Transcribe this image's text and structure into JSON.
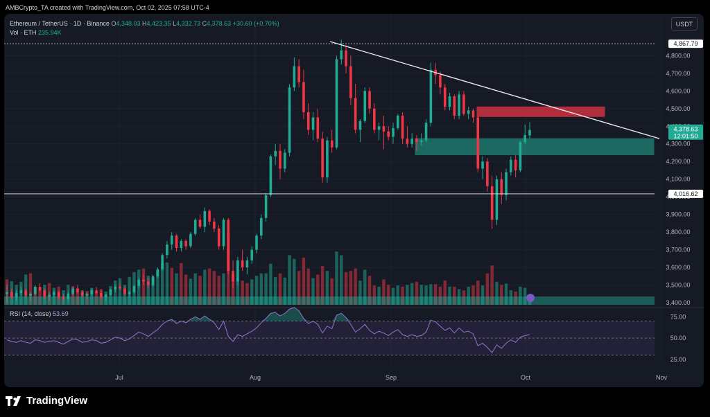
{
  "credit": "AMBCrypto_TA created with TradingView.com, Oct 02, 2025 07:58 UTC-4",
  "header": {
    "symbol": "Ethereum / TetherUS · 1D · Binance",
    "o_label": "O",
    "o": "4,348.03",
    "h_label": "H",
    "h": "4,423.35",
    "l_label": "L",
    "l": "4,332.73",
    "c_label": "C",
    "c": "4,378.63",
    "change": "+30.60 (+0.70%)",
    "vol_label": "Vol · ETH",
    "vol": "235.94K"
  },
  "currency": "USDT",
  "brand": "TradingView",
  "colors": {
    "up": "#22ab94",
    "down": "#f23645",
    "bg": "#161a25",
    "grid": "#1e222d",
    "rsi": "#7e57c2"
  },
  "chart_data": [
    {
      "type": "candlestick",
      "price_ticks": [
        "4,800.00",
        "4,700.00",
        "4,600.00",
        "4,500.00",
        "4,400.00",
        "4,300.00",
        "4,200.00",
        "4,100.00",
        "4,000.00",
        "3,900.00",
        "3,800.00",
        "3,700.00",
        "3,600.00",
        "3,500.00",
        "3,400.00"
      ],
      "ylim": [
        3400,
        4900
      ],
      "x_ticks": [
        "Jul",
        "Aug",
        "Sep",
        "Oct",
        "Nov"
      ],
      "price_labels": {
        "high_line": "4,867.79",
        "last": "4,378.63",
        "countdown": "12:01:50",
        "support": "4,016.62"
      },
      "trendline": {
        "from": [
          4880
        ],
        "to": [
          4330
        ]
      },
      "zones": [
        {
          "name": "resistance",
          "low": 4455,
          "high": 4510,
          "color": "#f23645"
        },
        {
          "name": "support",
          "low": 4238,
          "high": 4330,
          "color": "#22ab94"
        }
      ],
      "ohlc": [
        [
          3450,
          3500,
          3400,
          3460
        ],
        [
          3460,
          3480,
          3420,
          3430
        ],
        [
          3430,
          3470,
          3410,
          3455
        ],
        [
          3455,
          3490,
          3440,
          3470
        ],
        [
          3470,
          3480,
          3430,
          3440
        ],
        [
          3440,
          3460,
          3410,
          3450
        ],
        [
          3450,
          3500,
          3440,
          3490
        ],
        [
          3490,
          3510,
          3460,
          3470
        ],
        [
          3470,
          3480,
          3420,
          3435
        ],
        [
          3435,
          3460,
          3410,
          3445
        ],
        [
          3445,
          3470,
          3430,
          3460
        ],
        [
          3460,
          3470,
          3420,
          3430
        ],
        [
          3430,
          3450,
          3400,
          3420
        ],
        [
          3420,
          3460,
          3410,
          3450
        ],
        [
          3450,
          3490,
          3440,
          3480
        ],
        [
          3480,
          3500,
          3450,
          3460
        ],
        [
          3460,
          3470,
          3430,
          3440
        ],
        [
          3440,
          3460,
          3420,
          3450
        ],
        [
          3450,
          3480,
          3440,
          3470
        ],
        [
          3470,
          3490,
          3450,
          3455
        ],
        [
          3455,
          3470,
          3420,
          3430
        ],
        [
          3430,
          3450,
          3410,
          3445
        ],
        [
          3445,
          3480,
          3440,
          3475
        ],
        [
          3475,
          3500,
          3460,
          3490
        ],
        [
          3490,
          3510,
          3470,
          3480
        ],
        [
          3480,
          3490,
          3440,
          3450
        ],
        [
          3450,
          3470,
          3430,
          3460
        ],
        [
          3460,
          3500,
          3450,
          3495
        ],
        [
          3495,
          3540,
          3480,
          3530
        ],
        [
          3530,
          3560,
          3500,
          3520
        ],
        [
          3520,
          3540,
          3480,
          3500
        ],
        [
          3500,
          3560,
          3490,
          3550
        ],
        [
          3550,
          3600,
          3540,
          3590
        ],
        [
          3590,
          3680,
          3580,
          3670
        ],
        [
          3670,
          3750,
          3650,
          3730
        ],
        [
          3730,
          3800,
          3700,
          3780
        ],
        [
          3780,
          3790,
          3690,
          3710
        ],
        [
          3710,
          3760,
          3690,
          3750
        ],
        [
          3750,
          3760,
          3700,
          3720
        ],
        [
          3720,
          3800,
          3710,
          3790
        ],
        [
          3790,
          3880,
          3780,
          3870
        ],
        [
          3870,
          3900,
          3820,
          3830
        ],
        [
          3830,
          3940,
          3800,
          3920
        ],
        [
          3920,
          3930,
          3840,
          3860
        ],
        [
          3860,
          3880,
          3800,
          3820
        ],
        [
          3820,
          3840,
          3700,
          3720
        ],
        [
          3720,
          3880,
          3700,
          3870
        ],
        [
          3870,
          3880,
          3560,
          3580
        ],
        [
          3580,
          3640,
          3480,
          3520
        ],
        [
          3520,
          3660,
          3500,
          3640
        ],
        [
          3640,
          3700,
          3580,
          3600
        ],
        [
          3600,
          3660,
          3560,
          3640
        ],
        [
          3640,
          3720,
          3620,
          3700
        ],
        [
          3700,
          3790,
          3680,
          3780
        ],
        [
          3780,
          3900,
          3760,
          3880
        ],
        [
          3880,
          4020,
          3860,
          4010
        ],
        [
          4010,
          4240,
          4000,
          4230
        ],
        [
          4230,
          4300,
          4180,
          4260
        ],
        [
          4260,
          4300,
          4100,
          4160
        ],
        [
          4160,
          4270,
          4140,
          4250
        ],
        [
          4250,
          4640,
          4230,
          4620
        ],
        [
          4620,
          4790,
          4600,
          4740
        ],
        [
          4740,
          4780,
          4620,
          4650
        ],
        [
          4650,
          4720,
          4440,
          4480
        ],
        [
          4480,
          4530,
          4350,
          4380
        ],
        [
          4380,
          4480,
          4320,
          4450
        ],
        [
          4450,
          4500,
          4310,
          4330
        ],
        [
          4330,
          4370,
          4080,
          4110
        ],
        [
          4110,
          4340,
          4080,
          4320
        ],
        [
          4320,
          4380,
          4250,
          4280
        ],
        [
          4280,
          4800,
          4270,
          4780
        ],
        [
          4780,
          4890,
          4750,
          4830
        ],
        [
          4830,
          4860,
          4700,
          4740
        ],
        [
          4740,
          4800,
          4520,
          4560
        ],
        [
          4560,
          4640,
          4360,
          4380
        ],
        [
          4380,
          4440,
          4310,
          4430
        ],
        [
          4430,
          4620,
          4420,
          4600
        ],
        [
          4600,
          4620,
          4470,
          4500
        ],
        [
          4500,
          4530,
          4360,
          4380
        ],
        [
          4380,
          4420,
          4320,
          4400
        ],
        [
          4400,
          4460,
          4270,
          4370
        ],
        [
          4370,
          4400,
          4320,
          4340
        ],
        [
          4340,
          4420,
          4300,
          4390
        ],
        [
          4390,
          4470,
          4380,
          4460
        ],
        [
          4460,
          4480,
          4300,
          4330
        ],
        [
          4330,
          4400,
          4280,
          4300
        ],
        [
          4300,
          4360,
          4280,
          4330
        ],
        [
          4330,
          4350,
          4260,
          4310
        ],
        [
          4310,
          4360,
          4290,
          4320
        ],
        [
          4320,
          4440,
          4310,
          4420
        ],
        [
          4420,
          4760,
          4400,
          4720
        ],
        [
          4720,
          4760,
          4640,
          4690
        ],
        [
          4690,
          4710,
          4580,
          4620
        ],
        [
          4620,
          4640,
          4490,
          4510
        ],
        [
          4510,
          4590,
          4490,
          4570
        ],
        [
          4570,
          4580,
          4440,
          4460
        ],
        [
          4460,
          4600,
          4440,
          4580
        ],
        [
          4580,
          4600,
          4460,
          4470
        ],
        [
          4470,
          4510,
          4440,
          4490
        ],
        [
          4490,
          4500,
          4420,
          4450
        ],
        [
          4450,
          4460,
          4140,
          4160
        ],
        [
          4160,
          4230,
          4100,
          4200
        ],
        [
          4200,
          4220,
          4030,
          4060
        ],
        [
          4060,
          4120,
          3820,
          3870
        ],
        [
          3870,
          4120,
          3840,
          4100
        ],
        [
          4100,
          4140,
          3960,
          4010
        ],
        [
          4010,
          4160,
          3980,
          4140
        ],
        [
          4140,
          4230,
          4120,
          4210
        ],
        [
          4210,
          4240,
          4110,
          4150
        ],
        [
          4150,
          4320,
          4140,
          4310
        ],
        [
          4310,
          4410,
          4300,
          4350
        ],
        [
          4348,
          4423,
          4332,
          4379
        ]
      ],
      "volume": [
        [
          420,
          0
        ],
        [
          390,
          1
        ],
        [
          330,
          1
        ],
        [
          380,
          1
        ],
        [
          500,
          1
        ],
        [
          520,
          0
        ],
        [
          300,
          0
        ],
        [
          270,
          0
        ],
        [
          330,
          1
        ],
        [
          360,
          0
        ],
        [
          280,
          1
        ],
        [
          300,
          0
        ],
        [
          240,
          1
        ],
        [
          330,
          1
        ],
        [
          310,
          0
        ],
        [
          270,
          0
        ],
        [
          240,
          1
        ],
        [
          230,
          0
        ],
        [
          280,
          1
        ],
        [
          210,
          0
        ],
        [
          260,
          0
        ],
        [
          220,
          1
        ],
        [
          310,
          1
        ],
        [
          400,
          1
        ],
        [
          440,
          1
        ],
        [
          330,
          1
        ],
        [
          460,
          1
        ],
        [
          540,
          1
        ],
        [
          580,
          1
        ],
        [
          600,
          0
        ],
        [
          480,
          1
        ],
        [
          440,
          1
        ],
        [
          560,
          1
        ],
        [
          680,
          1
        ],
        [
          700,
          1
        ],
        [
          610,
          0
        ],
        [
          520,
          1
        ],
        [
          690,
          0
        ],
        [
          500,
          0
        ],
        [
          430,
          1
        ],
        [
          520,
          1
        ],
        [
          480,
          0
        ],
        [
          580,
          1
        ],
        [
          600,
          0
        ],
        [
          560,
          0
        ],
        [
          480,
          0
        ],
        [
          520,
          1
        ],
        [
          1180,
          0
        ],
        [
          500,
          0
        ],
        [
          450,
          1
        ],
        [
          400,
          0
        ],
        [
          360,
          0
        ],
        [
          420,
          1
        ],
        [
          480,
          1
        ],
        [
          520,
          1
        ],
        [
          520,
          1
        ],
        [
          680,
          1
        ],
        [
          460,
          1
        ],
        [
          520,
          0
        ],
        [
          450,
          1
        ],
        [
          820,
          1
        ],
        [
          760,
          1
        ],
        [
          560,
          0
        ],
        [
          780,
          0
        ],
        [
          600,
          0
        ],
        [
          440,
          1
        ],
        [
          500,
          0
        ],
        [
          640,
          0
        ],
        [
          560,
          1
        ],
        [
          440,
          0
        ],
        [
          880,
          1
        ],
        [
          820,
          1
        ],
        [
          540,
          0
        ],
        [
          560,
          0
        ],
        [
          600,
          0
        ],
        [
          400,
          1
        ],
        [
          580,
          1
        ],
        [
          480,
          0
        ],
        [
          320,
          0
        ],
        [
          300,
          1
        ],
        [
          420,
          0
        ],
        [
          330,
          0
        ],
        [
          280,
          1
        ],
        [
          320,
          1
        ],
        [
          300,
          0
        ],
        [
          330,
          1
        ],
        [
          360,
          1
        ],
        [
          380,
          0
        ],
        [
          330,
          1
        ],
        [
          320,
          1
        ],
        [
          340,
          1
        ],
        [
          340,
          0
        ],
        [
          300,
          0
        ],
        [
          400,
          0
        ],
        [
          300,
          1
        ],
        [
          300,
          0
        ],
        [
          260,
          1
        ],
        [
          240,
          0
        ],
        [
          300,
          1
        ],
        [
          320,
          0
        ],
        [
          400,
          0
        ],
        [
          320,
          1
        ],
        [
          520,
          0
        ],
        [
          650,
          0
        ],
        [
          380,
          1
        ],
        [
          330,
          0
        ],
        [
          350,
          1
        ],
        [
          240,
          1
        ],
        [
          220,
          0
        ],
        [
          300,
          1
        ],
        [
          280,
          1
        ],
        [
          120,
          1
        ]
      ],
      "rsi": {
        "label": "RSI (14, close)",
        "value": "53.69",
        "ticks": [
          "75.00",
          "50.00",
          "25.00"
        ],
        "ylim": [
          20,
          85
        ],
        "values": [
          48,
          46,
          45,
          47,
          45,
          44,
          48,
          47,
          45,
          46,
          47,
          45,
          43,
          46,
          49,
          48,
          45,
          46,
          48,
          47,
          44,
          45,
          48,
          51,
          50,
          47,
          49,
          53,
          57,
          55,
          52,
          56,
          60,
          66,
          70,
          72,
          67,
          70,
          68,
          72,
          75,
          72,
          76,
          72,
          68,
          60,
          70,
          52,
          46,
          54,
          52,
          55,
          58,
          62,
          68,
          73,
          79,
          80,
          76,
          79,
          84,
          86,
          82,
          73,
          67,
          70,
          66,
          56,
          64,
          61,
          77,
          79,
          74,
          66,
          57,
          61,
          66,
          59,
          55,
          58,
          56,
          53,
          57,
          60,
          54,
          52,
          54,
          52,
          53,
          57,
          71,
          69,
          64,
          59,
          62,
          56,
          62,
          57,
          58,
          55,
          41,
          44,
          39,
          33,
          42,
          38,
          44,
          48,
          45,
          51,
          53,
          54
        ]
      }
    }
  ]
}
